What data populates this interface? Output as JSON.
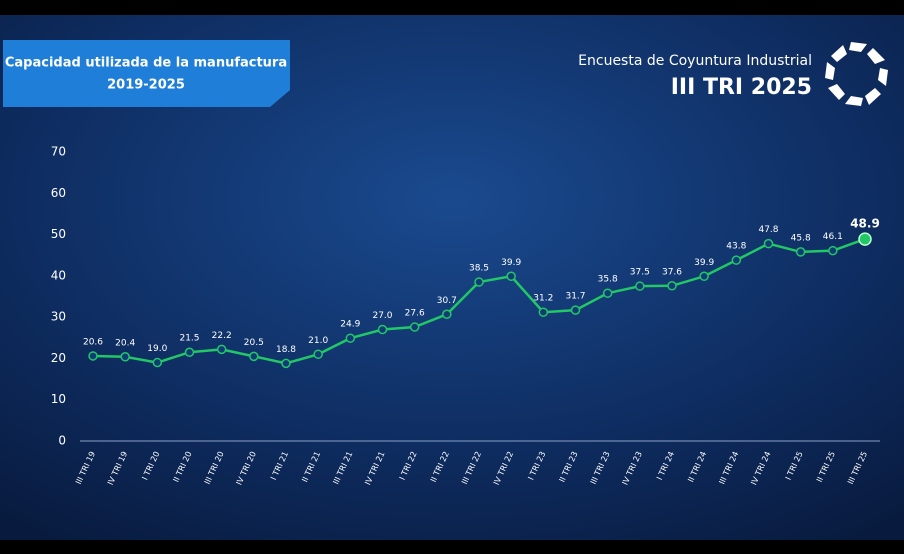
{
  "header": {
    "survey": "Encuesta de Coyuntura Industrial",
    "period": "III TRI 2025"
  },
  "chart_data": {
    "type": "line",
    "title": "Capacidad utilizada de la manufactura",
    "subtitle": "2019-2025",
    "categories": [
      "III TRI 19",
      "IV TRI 19",
      "I TRI 20",
      "II TRI 20",
      "III TRI 20",
      "IV TRI 20",
      "I TRI 21",
      "II TRI 21",
      "III TRI 21",
      "IV TRI 21",
      "I TRI 22",
      "II TRI 22",
      "III TRI 22",
      "IV TRI 22",
      "I TRI 23",
      "II TRI 23",
      "III TRI 23",
      "IV TRI 23",
      "I TRI 24",
      "II TRI 24",
      "III TRI 24",
      "IV TRI 24",
      "I TRI 25",
      "II TRI 25",
      "III TRI 25"
    ],
    "values": [
      20.6,
      20.4,
      19.0,
      21.5,
      22.2,
      20.5,
      18.8,
      21.0,
      24.9,
      27.0,
      27.6,
      30.7,
      38.5,
      39.9,
      31.2,
      31.7,
      35.8,
      37.5,
      37.6,
      39.9,
      43.8,
      47.8,
      45.8,
      46.1,
      48.9
    ],
    "value_labels": [
      "20.6",
      "20.4",
      "19.0",
      "21.5",
      "22.2",
      "20.5",
      "18.8",
      "21.0",
      "24.9",
      "27.0",
      "27.6",
      "30.7",
      "38.5",
      "39.9",
      "31.2",
      "31.7",
      "35.8",
      "37.5",
      "37.6",
      "39.9",
      "43.8",
      "47.8",
      "45.8",
      "46.1",
      "48.9"
    ],
    "color": "#22c766",
    "ylim": [
      0,
      70
    ],
    "yticks": [
      0,
      10,
      20,
      30,
      40,
      50,
      60,
      70
    ]
  }
}
